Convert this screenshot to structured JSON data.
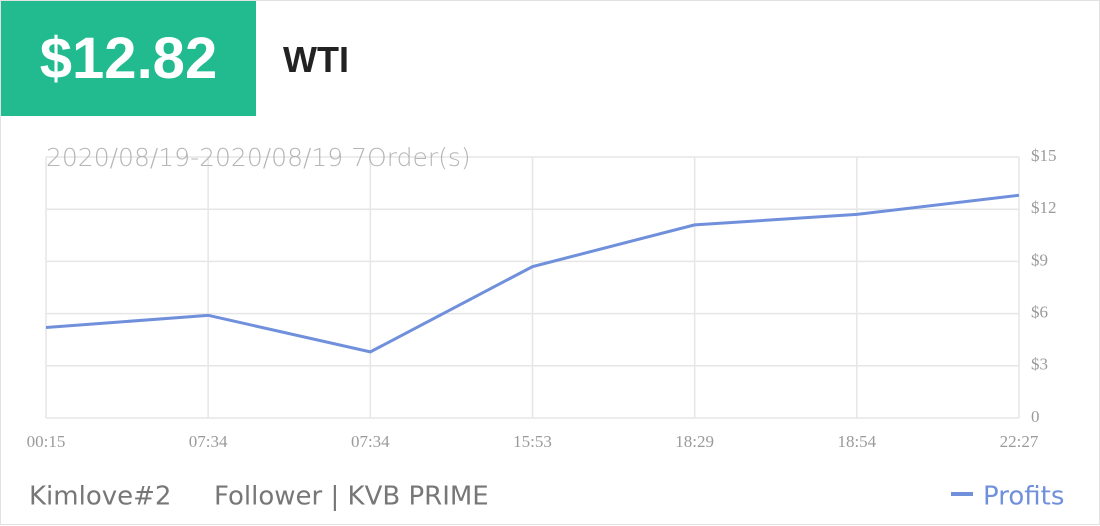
{
  "header": {
    "price": "$12.82",
    "symbol": "WTI"
  },
  "chart_data": {
    "type": "line",
    "subtitle": "2020/08/19-2020/08/19 7Order(s)",
    "categories": [
      "00:15",
      "07:34",
      "07:34",
      "15:53",
      "18:29",
      "18:54",
      "22:27"
    ],
    "series": [
      {
        "name": "Profits",
        "color": "#7090dc",
        "values": [
          5.2,
          5.9,
          3.8,
          8.7,
          11.1,
          11.7,
          12.8
        ]
      }
    ],
    "ylim": [
      0,
      15
    ],
    "yticks": [
      0,
      {
        "value": 3,
        "label": "$3"
      },
      {
        "value": 6,
        "label": "$6"
      },
      {
        "value": 9,
        "label": "$9"
      },
      {
        "value": 12,
        "label": "$12"
      },
      {
        "value": 15,
        "label": "$15"
      }
    ],
    "grid": true,
    "legend": "bottom-right"
  },
  "footer": {
    "user": "Kimlove#2",
    "role": "Follower | KVB PRIME"
  }
}
